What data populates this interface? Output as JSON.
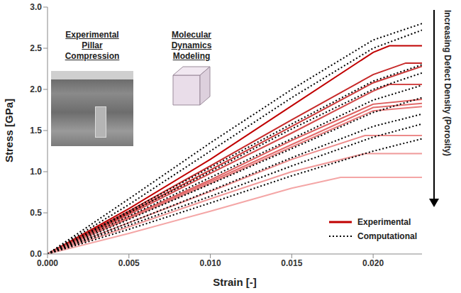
{
  "chart_data": {
    "type": "line",
    "x_label": "Strain [-]",
    "y_label": "Stress [GPa]",
    "xlim": [
      0,
      0.023
    ],
    "xticks": [
      {
        "value": 0,
        "label": "0.000"
      },
      0.005,
      {
        "value": 0.01,
        "label": "0.010"
      },
      0.015,
      {
        "value": 0.02,
        "label": "0.020"
      }
    ],
    "ylim": [
      0,
      3
    ],
    "yticks": [
      {
        "value": 0,
        "label": "0.0"
      },
      0.5,
      {
        "value": 1,
        "label": "1.0"
      },
      1.5,
      {
        "value": 2,
        "label": "2.0"
      },
      2.5,
      {
        "value": 3,
        "label": "3.0"
      }
    ],
    "legend": "lower right",
    "annotations": [
      "Experimental Pillar Compression",
      "Molecular Dynamics Modeling",
      "Increasing Defect Density (Porosity)"
    ],
    "series": [
      {
        "name": "Experimental",
        "color": "#c00000",
        "line_style": "solid",
        "curves": [
          {
            "color": "#c00000",
            "x": [
              0,
              0.005,
              0.01,
              0.015,
              0.02,
              0.021,
              0.023
            ],
            "values": [
              0,
              0.55,
              1.15,
              1.8,
              2.45,
              2.53,
              2.53
            ]
          },
          {
            "color": "#c62828",
            "x": [
              0,
              0.005,
              0.01,
              0.015,
              0.02,
              0.022,
              0.023
            ],
            "values": [
              0,
              0.52,
              1.07,
              1.63,
              2.18,
              2.32,
              2.32
            ]
          },
          {
            "color": "#cc3b3b",
            "x": [
              0,
              0.005,
              0.01,
              0.015,
              0.02,
              0.023
            ],
            "values": [
              0,
              0.5,
              1.02,
              1.55,
              2.08,
              2.28
            ]
          },
          {
            "color": "#d44a4a",
            "x": [
              0,
              0.005,
              0.01,
              0.015,
              0.02,
              0.021,
              0.023
            ],
            "values": [
              0,
              0.48,
              0.98,
              1.47,
              1.98,
              2.06,
              2.06
            ]
          },
          {
            "color": "#dc5c5c",
            "x": [
              0,
              0.005,
              0.01,
              0.015,
              0.02,
              0.023
            ],
            "values": [
              0,
              0.45,
              0.9,
              1.38,
              1.82,
              1.88
            ]
          },
          {
            "color": "#e26b6b",
            "x": [
              0,
              0.005,
              0.01,
              0.015,
              0.02,
              0.023
            ],
            "values": [
              0,
              0.44,
              0.88,
              1.33,
              1.78,
              1.83
            ]
          },
          {
            "color": "#e77b7b",
            "x": [
              0,
              0.005,
              0.01,
              0.015,
              0.02,
              0.023
            ],
            "values": [
              0,
              0.43,
              0.86,
              1.3,
              1.74,
              1.79
            ]
          },
          {
            "color": "#ec8a8a",
            "x": [
              0,
              0.005,
              0.01,
              0.015,
              0.0195,
              0.023
            ],
            "values": [
              0,
              0.38,
              0.76,
              1.15,
              1.44,
              1.44
            ]
          },
          {
            "color": "#f09999",
            "x": [
              0,
              0.005,
              0.01,
              0.015,
              0.0195,
              0.023
            ],
            "values": [
              0,
              0.33,
              0.67,
              1.0,
              1.22,
              1.22
            ]
          },
          {
            "color": "#f4a6a6",
            "x": [
              0,
              0.005,
              0.01,
              0.015,
              0.018,
              0.023
            ],
            "values": [
              0,
              0.25,
              0.52,
              0.8,
              0.93,
              0.93
            ]
          }
        ]
      },
      {
        "name": "Computational",
        "color": "#000000",
        "line_style": "dotted",
        "curves": [
          {
            "x": [
              0,
              0.005,
              0.01,
              0.015,
              0.02,
              0.023
            ],
            "values": [
              0,
              0.67,
              1.35,
              2.0,
              2.6,
              2.8
            ]
          },
          {
            "x": [
              0,
              0.005,
              0.01,
              0.015,
              0.02,
              0.023
            ],
            "values": [
              0,
              0.6,
              1.25,
              1.9,
              2.5,
              2.72
            ]
          },
          {
            "x": [
              0,
              0.005,
              0.01,
              0.015,
              0.02,
              0.023
            ],
            "values": [
              0,
              0.52,
              1.05,
              1.58,
              2.1,
              2.3
            ]
          },
          {
            "x": [
              0,
              0.005,
              0.01,
              0.015,
              0.02,
              0.023
            ],
            "values": [
              0,
              0.5,
              1.0,
              1.52,
              2.0,
              2.2
            ]
          },
          {
            "x": [
              0,
              0.005,
              0.01,
              0.015,
              0.02,
              0.023
            ],
            "values": [
              0,
              0.46,
              0.93,
              1.4,
              1.87,
              2.05
            ]
          },
          {
            "x": [
              0,
              0.005,
              0.01,
              0.015,
              0.02,
              0.023
            ],
            "values": [
              0,
              0.42,
              0.85,
              1.28,
              1.72,
              1.9
            ]
          },
          {
            "x": [
              0,
              0.005,
              0.01,
              0.015,
              0.02,
              0.023
            ],
            "values": [
              0,
              0.38,
              0.77,
              1.17,
              1.55,
              1.7
            ]
          },
          {
            "x": [
              0,
              0.005,
              0.01,
              0.015,
              0.02,
              0.023
            ],
            "values": [
              0,
              0.35,
              0.7,
              1.07,
              1.42,
              1.58
            ]
          },
          {
            "x": [
              0,
              0.005,
              0.01,
              0.015,
              0.02,
              0.023
            ],
            "values": [
              0,
              0.3,
              0.62,
              0.95,
              1.25,
              1.4
            ]
          }
        ]
      }
    ]
  }
}
